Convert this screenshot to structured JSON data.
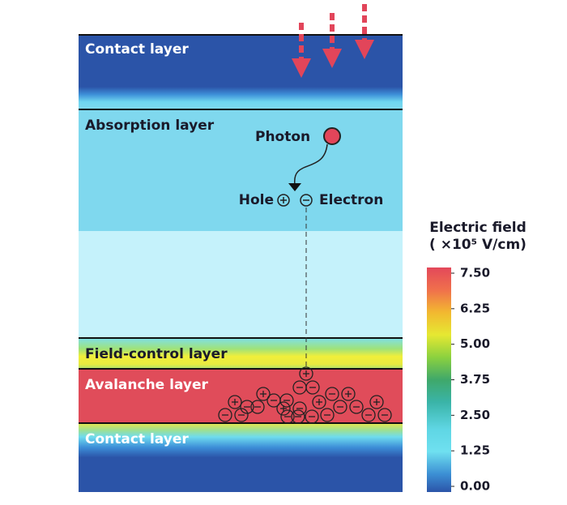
{
  "layers": {
    "contact_top": "Contact layer",
    "absorption": "Absorption layer",
    "field_control": "Field-control layer",
    "avalanche": "Avalanche layer",
    "contact_bottom": "Contact layer"
  },
  "labels": {
    "photon": "Photon",
    "hole": "Hole",
    "electron": "Electron"
  },
  "colorbar": {
    "title": "Electric field",
    "unit": "( ×10⁵ V/cm)",
    "lim": [
      0,
      7.5
    ],
    "ticks": [
      {
        "value": 7.5,
        "label": "7.50"
      },
      {
        "value": 6.25,
        "label": "6.25"
      },
      {
        "value": 5,
        "label": "5.00"
      },
      {
        "value": 3.75,
        "label": "3.75"
      },
      {
        "value": 2.5,
        "label": "2.50"
      },
      {
        "value": 1.25,
        "label": "1.25"
      },
      {
        "value": 0,
        "label": "0.00"
      }
    ]
  }
}
